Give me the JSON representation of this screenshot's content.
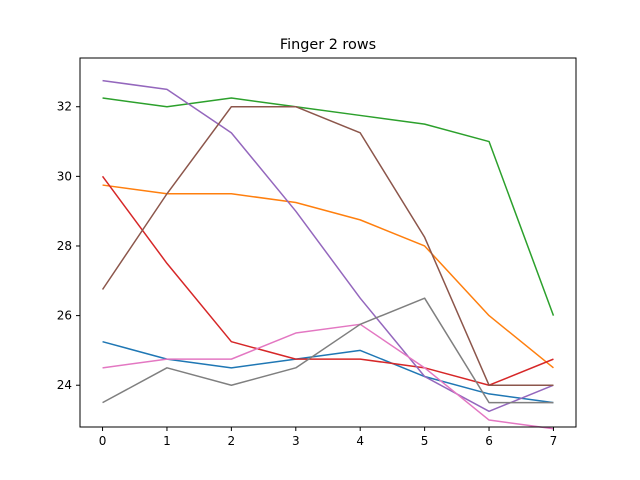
{
  "chart_data": {
    "type": "line",
    "title": "Finger 2 rows",
    "xlabel": "",
    "ylabel": "",
    "x": [
      0,
      1,
      2,
      3,
      4,
      5,
      6,
      7
    ],
    "xlim": [
      -0.35,
      7.35
    ],
    "ylim": [
      22.8,
      33.4
    ],
    "xticks": [
      0,
      1,
      2,
      3,
      4,
      5,
      6,
      7
    ],
    "yticks": [
      24,
      26,
      28,
      30,
      32
    ],
    "grid": false,
    "series": [
      {
        "color": "#1f77b4",
        "values": [
          25.25,
          24.75,
          24.5,
          24.75,
          25.0,
          24.25,
          23.75,
          23.5
        ]
      },
      {
        "color": "#ff7f0e",
        "values": [
          29.75,
          29.5,
          29.5,
          29.25,
          28.75,
          28.0,
          26.0,
          24.5
        ]
      },
      {
        "color": "#2ca02c",
        "values": [
          32.25,
          32.0,
          32.25,
          32.0,
          31.75,
          31.5,
          31.0,
          26.0
        ]
      },
      {
        "color": "#d62728",
        "values": [
          30.0,
          27.5,
          25.25,
          24.75,
          24.75,
          24.5,
          24.0,
          24.75
        ]
      },
      {
        "color": "#9467bd",
        "values": [
          32.75,
          32.5,
          31.25,
          29.0,
          26.5,
          24.25,
          23.25,
          24.0
        ]
      },
      {
        "color": "#8c564b",
        "values": [
          26.75,
          29.5,
          32.0,
          32.0,
          31.25,
          28.25,
          24.0,
          24.0
        ]
      },
      {
        "color": "#e377c2",
        "values": [
          24.5,
          24.75,
          24.75,
          25.5,
          25.75,
          24.5,
          23.0,
          22.75
        ]
      },
      {
        "color": "#7f7f7f",
        "values": [
          23.5,
          24.5,
          24.0,
          24.5,
          25.75,
          26.5,
          23.5,
          23.5
        ]
      }
    ]
  }
}
